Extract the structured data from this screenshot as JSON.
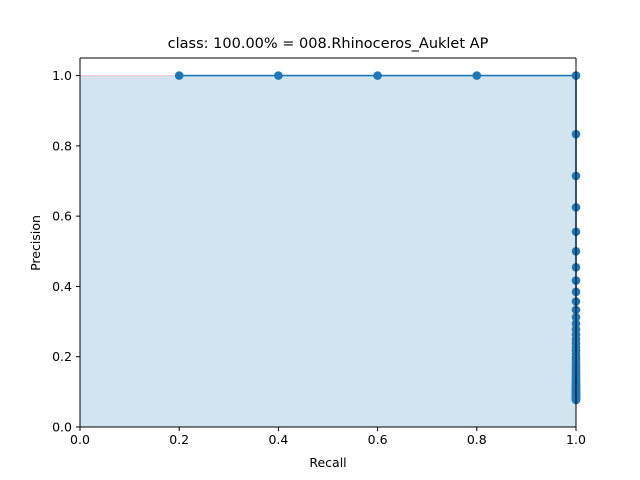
{
  "chart_data": {
    "type": "line",
    "title": "class: 100.00% = 008.Rhinoceros_Auklet AP",
    "xlabel": "Recall",
    "ylabel": "Precision",
    "xlim": [
      0.0,
      1.0
    ],
    "ylim": [
      0.0,
      1.05
    ],
    "xticks": [
      "0.0",
      "0.2",
      "0.4",
      "0.6",
      "0.8",
      "1.0"
    ],
    "yticks": [
      "0.0",
      "0.2",
      "0.4",
      "0.6",
      "0.8",
      "1.0"
    ],
    "grid": false,
    "series": [
      {
        "x": [
          0.2,
          0.4,
          0.6,
          0.8,
          1.0,
          1.0,
          1.0,
          1.0,
          1.0,
          1.0,
          1.0,
          1.0,
          1.0,
          1.0,
          1.0,
          1.0,
          1.0,
          1.0,
          1.0,
          1.0,
          1.0,
          1.0,
          1.0,
          1.0,
          1.0,
          1.0,
          1.0,
          1.0,
          1.0,
          1.0,
          1.0,
          1.0,
          1.0,
          1.0,
          1.0,
          1.0,
          1.0,
          1.0,
          1.0,
          1.0,
          1.0,
          1.0,
          1.0,
          1.0,
          1.0,
          1.0,
          1.0,
          1.0,
          1.0,
          1.0,
          1.0,
          1.0,
          1.0,
          1.0,
          1.0,
          1.0,
          1.0,
          1.0,
          1.0,
          1.0,
          1.0,
          1.0,
          1.0,
          1.0,
          1.0
        ],
        "y": [
          1.0,
          1.0,
          1.0,
          1.0,
          1.0,
          0.8333,
          0.7143,
          0.625,
          0.5556,
          0.5,
          0.4545,
          0.4167,
          0.3846,
          0.3571,
          0.3333,
          0.3125,
          0.2941,
          0.2778,
          0.2632,
          0.25,
          0.2381,
          0.2273,
          0.2174,
          0.2083,
          0.2,
          0.1923,
          0.1852,
          0.1786,
          0.1724,
          0.1667,
          0.1613,
          0.1563,
          0.1515,
          0.1471,
          0.1429,
          0.1389,
          0.1351,
          0.1316,
          0.1282,
          0.125,
          0.122,
          0.119,
          0.1163,
          0.1136,
          0.1111,
          0.1087,
          0.1064,
          0.1042,
          0.102,
          0.1,
          0.098,
          0.0962,
          0.0943,
          0.0926,
          0.0909,
          0.0893,
          0.0877,
          0.0862,
          0.0847,
          0.0833,
          0.082,
          0.0806,
          0.0794,
          0.0781,
          0.0769
        ],
        "color": "#1f77b4"
      }
    ],
    "area": {
      "x": [
        0.0,
        0.0,
        1.0,
        1.0
      ],
      "y": [
        0.0,
        1.0,
        1.0,
        0.0
      ],
      "color": "#1f77b4",
      "alpha": 0.2,
      "edge_color": "#ff0000"
    }
  }
}
